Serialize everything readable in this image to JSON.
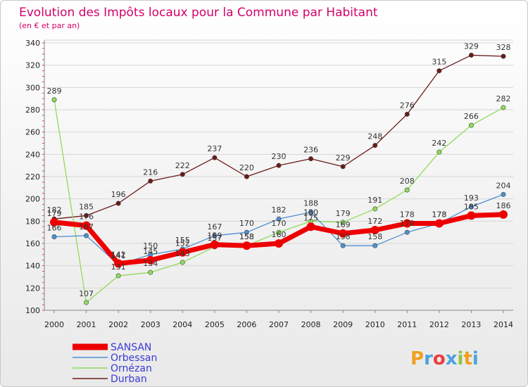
{
  "chart_data": {
    "type": "line",
    "title": "Evolution des Impôts locaux pour la Commune par Habitant",
    "subtitle": "(en € et par an)",
    "xlabel": "",
    "ylabel": "",
    "ylim": [
      100,
      340
    ],
    "yticks": [
      100,
      120,
      140,
      160,
      180,
      200,
      220,
      240,
      260,
      280,
      300,
      320,
      340
    ],
    "x": [
      "2000",
      "2001",
      "2002",
      "2003",
      "2004",
      "2005",
      "2006",
      "2007",
      "2008",
      "2009",
      "2010",
      "2011",
      "2012",
      "2013",
      "2014"
    ],
    "legend_position": "bottom-left",
    "series": [
      {
        "name": "Durban",
        "color": "#6b1a1a",
        "values": [
          182,
          185,
          196,
          216,
          222,
          237,
          220,
          230,
          236,
          229,
          248,
          276,
          315,
          329,
          328
        ],
        "labels_shown": true
      },
      {
        "name": "Ornézan",
        "color": "#8fdc5a",
        "values": [
          289,
          107,
          131,
          134,
          143,
          157,
          158,
          170,
          180,
          179,
          191,
          208,
          242,
          266,
          282
        ],
        "labels_shown": true
      },
      {
        "name": "Orbessan",
        "color": "#4f8fd0",
        "values": [
          166,
          167,
          141,
          150,
          155,
          167,
          170,
          182,
          188,
          158,
          158,
          170,
          178,
          193,
          204
        ],
        "labels_shown": true
      },
      {
        "name": "SANSAN",
        "color": "#ee0000",
        "values": [
          179,
          176,
          142,
          145,
          152,
          159,
          158,
          160,
          175,
          169,
          172,
          178,
          178,
          185,
          186
        ],
        "labels_shown": true
      }
    ]
  },
  "legend": {
    "items": [
      "SANSAN",
      "Orbessan",
      "Ornézan",
      "Durban"
    ]
  },
  "logo": {
    "letters": [
      "P",
      "r",
      "o",
      "x",
      "i",
      "t",
      "i"
    ],
    "colors": [
      "#f0a020",
      "#4aa3df",
      "#ee3c3c",
      "#4aa3df",
      "#8cc63f",
      "#f0a020",
      "#4aa3df"
    ]
  }
}
